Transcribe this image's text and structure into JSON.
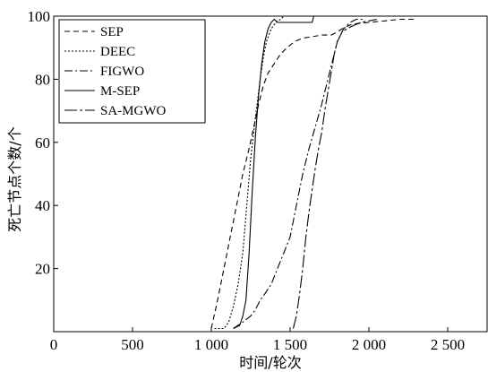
{
  "chart_data": {
    "type": "line",
    "title": "",
    "xlabel": "时间/轮次",
    "ylabel": "死亡节点个数/个",
    "xlim": [
      0,
      2750
    ],
    "ylim": [
      0,
      100
    ],
    "xticks": [
      {
        "value": 0,
        "label": "0"
      },
      {
        "value": 500,
        "label": "500"
      },
      {
        "value": 1000,
        "label": "1 000"
      },
      {
        "value": 1500,
        "label": "1 500"
      },
      {
        "value": 2000,
        "label": "2 000"
      },
      {
        "value": 2500,
        "label": "2 500"
      }
    ],
    "yticks": [
      {
        "value": 20,
        "label": "20"
      },
      {
        "value": 40,
        "label": "40"
      },
      {
        "value": 60,
        "label": "60"
      },
      {
        "value": 80,
        "label": "80"
      },
      {
        "value": 100,
        "label": "100"
      }
    ],
    "grid": false,
    "legend_position": "top-left",
    "series": [
      {
        "name": "SEP",
        "dash": "6,4",
        "x": [
          1000,
          1040,
          1080,
          1120,
          1160,
          1200,
          1240,
          1270,
          1300,
          1330,
          1360,
          1400,
          1440,
          1480,
          1530,
          1580,
          1640,
          1700,
          1760,
          1800,
          1830,
          1870,
          1900,
          2000,
          2100,
          2200,
          2290
        ],
        "y": [
          1,
          10,
          20,
          30,
          40,
          50,
          58,
          65,
          72,
          78,
          82,
          85,
          88,
          90,
          92,
          93,
          93.5,
          94,
          94,
          95,
          96,
          97,
          97.5,
          98,
          98.5,
          99,
          99
        ]
      },
      {
        "name": "DEEC",
        "dash": "2,2",
        "x": [
          1020,
          1080,
          1110,
          1140,
          1170,
          1200,
          1225,
          1250,
          1280,
          1310,
          1330,
          1350,
          1380,
          1410,
          1440,
          1460
        ],
        "y": [
          1,
          1,
          3,
          8,
          15,
          25,
          40,
          55,
          68,
          80,
          87,
          92,
          96,
          98,
          99,
          100
        ]
      },
      {
        "name": "FIGWO",
        "dash": "9,3,2,3",
        "x": [
          1140,
          1200,
          1250,
          1280,
          1310,
          1340,
          1380,
          1420,
          1460,
          1500,
          1540,
          1580,
          1620,
          1660,
          1700,
          1740,
          1770,
          1800,
          1840,
          1880,
          1920,
          1960
        ],
        "y": [
          1,
          3,
          5,
          7,
          10,
          12,
          15,
          20,
          25,
          30,
          40,
          50,
          58,
          65,
          72,
          80,
          86,
          92,
          96,
          98,
          99,
          99
        ]
      },
      {
        "name": "M-SEP",
        "dash": "",
        "x": [
          1140,
          1180,
          1200,
          1220,
          1240,
          1260,
          1280,
          1300,
          1320,
          1340,
          1360,
          1380,
          1400,
          1420,
          1640,
          1650
        ],
        "y": [
          1,
          2,
          5,
          10,
          25,
          45,
          62,
          75,
          85,
          92,
          96,
          98,
          99,
          98,
          98,
          100
        ]
      },
      {
        "name": "SA-MGWO",
        "dash": "14,3,3,3",
        "x": [
          1520,
          1540,
          1560,
          1580,
          1600,
          1620,
          1640,
          1660,
          1680,
          1700,
          1720,
          1740,
          1760,
          1780,
          1800,
          1830,
          1860,
          1900,
          1950,
          2000,
          2050
        ],
        "y": [
          1,
          5,
          12,
          20,
          30,
          38,
          45,
          52,
          58,
          63,
          70,
          76,
          82,
          88,
          92,
          95,
          96,
          97,
          98,
          98.5,
          99
        ]
      }
    ]
  }
}
